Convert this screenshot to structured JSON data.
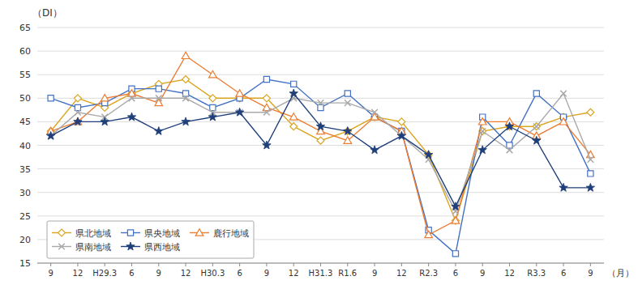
{
  "chart_data": {
    "type": "line",
    "categories": [
      "9",
      "12",
      "H29.3",
      "6",
      "9",
      "12",
      "H30.3",
      "6",
      "9",
      "12",
      "H31.3",
      "R1.6",
      "9",
      "12",
      "R2.3",
      "6",
      "9",
      "12",
      "R3.3",
      "6",
      "9"
    ],
    "series": [
      {
        "name": "県北地域",
        "color": "#DAA520",
        "marker": "diamond",
        "values": [
          43,
          50,
          48,
          51,
          53,
          54,
          50,
          50,
          50,
          44,
          41,
          43,
          46,
          45,
          38,
          24,
          43,
          44,
          44,
          46,
          47
        ]
      },
      {
        "name": "県央地域",
        "color": "#4472C4",
        "marker": "square",
        "values": [
          50,
          48,
          49,
          52,
          52,
          51,
          48,
          50,
          54,
          53,
          48,
          51,
          46,
          43,
          22,
          17,
          46,
          40,
          51,
          46,
          34
        ]
      },
      {
        "name": "鹿行地域",
        "color": "#ED7D31",
        "marker": "triangle",
        "values": [
          43,
          45,
          50,
          51,
          49,
          59,
          55,
          51,
          48,
          46,
          43,
          41,
          46,
          43,
          21,
          24,
          45,
          45,
          42,
          45,
          38
        ]
      },
      {
        "name": "県南地域",
        "color": "#A9A9A9",
        "marker": "x",
        "values": [
          42,
          47,
          46,
          50,
          50,
          50,
          47,
          47,
          47,
          50,
          49,
          49,
          47,
          42,
          37,
          26,
          43,
          39,
          44,
          51,
          37
        ]
      },
      {
        "name": "県西地域",
        "color": "#1F3F7A",
        "marker": "star",
        "values": [
          42,
          45,
          45,
          46,
          43,
          45,
          46,
          47,
          40,
          51,
          44,
          43,
          39,
          42,
          38,
          27,
          39,
          44,
          41,
          31,
          31
        ]
      }
    ],
    "xlabel": "（月）",
    "ylabel": "（DI）",
    "ylim": [
      15,
      65
    ],
    "yticks": [
      15,
      20,
      25,
      30,
      35,
      40,
      45,
      50,
      55,
      60,
      65
    ],
    "grid": true,
    "legend": "lower left"
  }
}
